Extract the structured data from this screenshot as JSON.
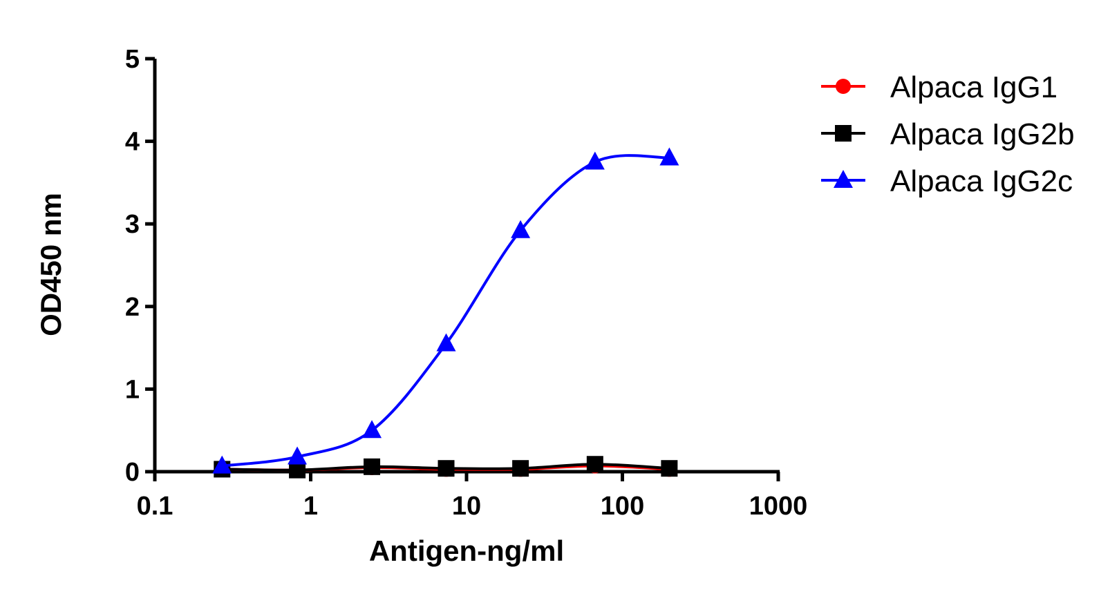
{
  "chart_data": {
    "type": "line",
    "xlabel": "Antigen-ng/ml",
    "ylabel": "OD450 nm",
    "xscale": "log",
    "xlim": [
      0.1,
      1000
    ],
    "ylim": [
      0,
      5
    ],
    "xticks": [
      "0.1",
      "1",
      "10",
      "100",
      "1000"
    ],
    "yticks": [
      "0",
      "1",
      "2",
      "3",
      "4",
      "5"
    ],
    "grid": false,
    "legend_position": "right",
    "x": [
      0.27,
      0.82,
      2.47,
      7.4,
      22.2,
      66.7,
      200
    ],
    "series": [
      {
        "name": "Alpaca IgG1",
        "color": "#ff0000",
        "marker": "circle",
        "values": [
          0.03,
          0.02,
          0.05,
          0.03,
          0.03,
          0.07,
          0.03
        ]
      },
      {
        "name": "Alpaca IgG2b",
        "color": "#000000",
        "marker": "square",
        "values": [
          0.03,
          0.02,
          0.06,
          0.04,
          0.04,
          0.09,
          0.04
        ]
      },
      {
        "name": "Alpaca IgG2c",
        "color": "#0000ff",
        "marker": "triangle",
        "values": [
          0.07,
          0.18,
          0.5,
          1.55,
          2.92,
          3.75,
          3.8
        ]
      }
    ]
  }
}
